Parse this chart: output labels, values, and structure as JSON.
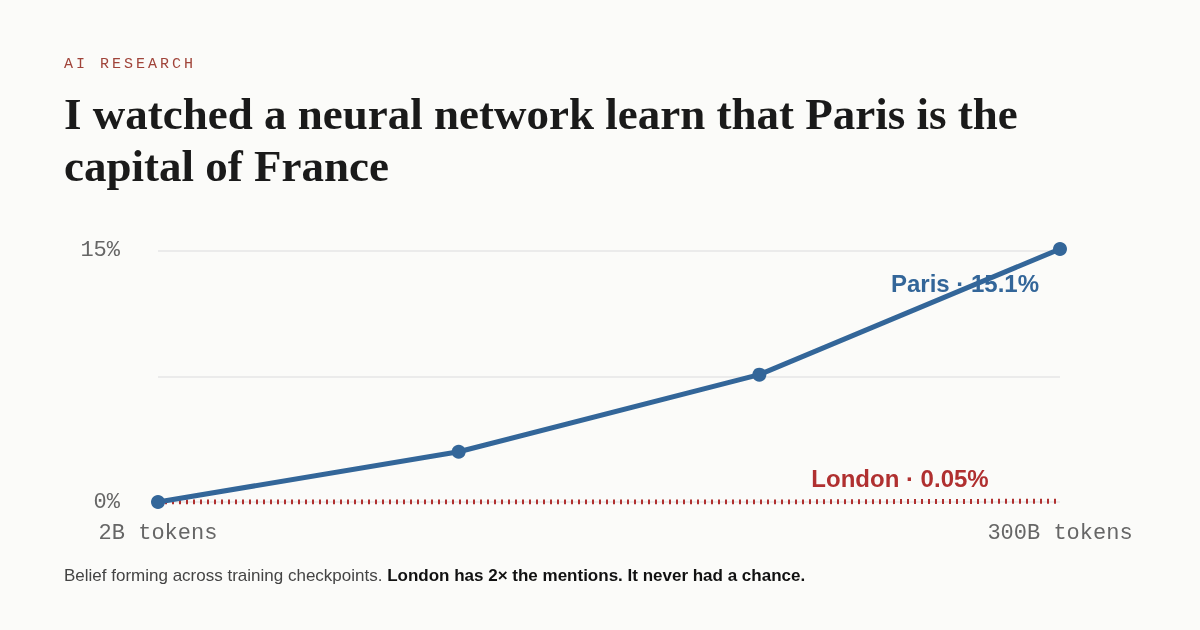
{
  "chart_data": {
    "type": "line",
    "subtitle": "AI RESEARCH",
    "title": "I watched a neural network learn that Paris is the capital of France",
    "categories": [
      "2B tokens",
      null,
      null,
      "300B tokens"
    ],
    "series": [
      {
        "name": "Paris",
        "color": "#336699",
        "values": [
          0,
          3.0,
          7.6,
          15.1
        ],
        "marker": "circle",
        "line_style": "solid",
        "value_labels": [
          null,
          null,
          null,
          "· 15.1%"
        ]
      },
      {
        "name": "London",
        "color": "#b03030",
        "values": [
          0,
          0,
          0,
          0.05
        ],
        "marker": "none",
        "line_style": "dotted",
        "value_labels": [
          null,
          null,
          null,
          "· 0.05%"
        ]
      }
    ],
    "ylim": [
      0,
      15.1
    ],
    "yticks": [
      {
        "value": 0,
        "label": "0%"
      },
      {
        "value": 7.5,
        "label": null
      },
      {
        "value": 15,
        "label": "15%"
      }
    ],
    "grid": "y",
    "legend": false,
    "annotations": [
      "Belief forming across training checkpoints.",
      "London has 2× the mentions. It never had a chance."
    ]
  }
}
